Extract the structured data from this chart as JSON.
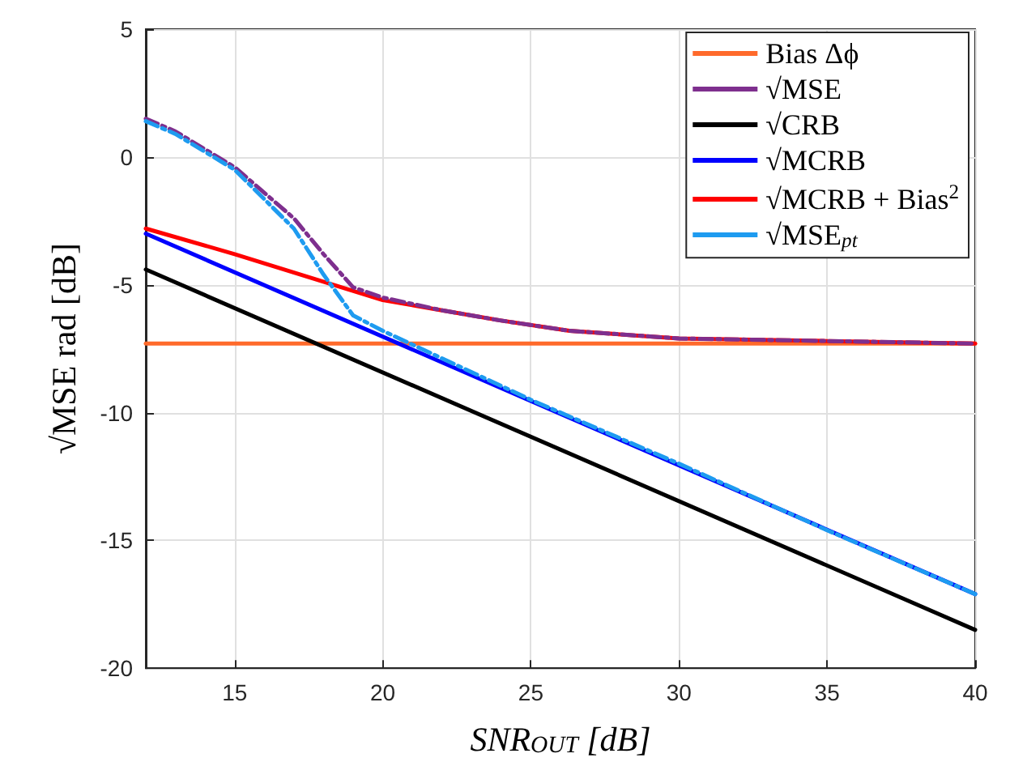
{
  "chart_data": {
    "type": "line",
    "xlabel": "SNR$_{OUT}$ [dB]",
    "ylabel": "√MSE rad [dB]",
    "xlim": [
      12,
      40
    ],
    "xticks": [
      15,
      20,
      25,
      30,
      35,
      40
    ],
    "ylim": [
      -20,
      5
    ],
    "yticks": [
      -20,
      -15,
      -10,
      -5,
      0,
      5
    ],
    "grid": true,
    "legend": "top right",
    "marker": "none",
    "series": [
      {
        "name": "Bias Δϕ",
        "color": "#ff6a2b",
        "line_style": "solid",
        "x": [
          12,
          40
        ],
        "values": [
          -7.3,
          -7.3
        ]
      },
      {
        "name": "√MSE",
        "color": "#7e2f8e",
        "line_style": "dashed",
        "x": [
          12,
          13,
          15,
          17,
          18,
          19,
          20,
          22,
          24,
          26.3,
          30,
          35,
          40
        ],
        "values": [
          1.5,
          1.0,
          -0.4,
          -2.4,
          -3.8,
          -5.1,
          -5.5,
          -6.0,
          -6.4,
          -6.8,
          -7.1,
          -7.2,
          -7.3
        ]
      },
      {
        "name": "√CRB",
        "color": "#000000",
        "line_style": "solid",
        "x": [
          12,
          40
        ],
        "values": [
          -4.4,
          -18.5
        ]
      },
      {
        "name": "√MCRB",
        "color": "#0000ff",
        "line_style": "solid",
        "x": [
          12,
          40
        ],
        "values": [
          -3.0,
          -17.1
        ]
      },
      {
        "name": "√MCRB + Bias$^{2}$",
        "color": "#ff0000",
        "line_style": "solid",
        "x": [
          12,
          15,
          20,
          22,
          24,
          26.3,
          30,
          35,
          40
        ],
        "values": [
          -2.8,
          -3.8,
          -5.6,
          -6.0,
          -6.4,
          -6.8,
          -7.1,
          -7.2,
          -7.3
        ]
      },
      {
        "name": "√MSE$_{pt}$",
        "color": "#1e9bf0",
        "line_style": "dashed",
        "x": [
          12,
          13,
          15,
          17,
          18,
          19,
          20,
          25,
          30,
          35,
          40
        ],
        "values": [
          1.4,
          0.9,
          -0.5,
          -2.8,
          -4.6,
          -6.2,
          -6.8,
          -9.5,
          -12.0,
          -14.6,
          -17.1
        ]
      }
    ]
  }
}
